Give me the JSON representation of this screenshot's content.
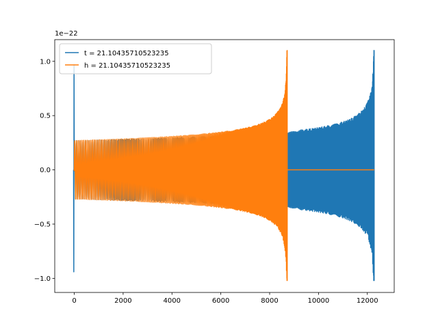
{
  "chart_data": {
    "type": "line",
    "title": "",
    "xlabel": "",
    "ylabel": "",
    "offset_text": "1e−22",
    "xlim": [
      -800,
      13100
    ],
    "ylim": [
      -1.13,
      1.2
    ],
    "x_ticks": [
      0,
      2000,
      4000,
      6000,
      8000,
      10000,
      12000
    ],
    "y_ticks": [
      -1.0,
      -0.5,
      0.0,
      0.5,
      1.0
    ],
    "y_tick_labels": [
      "−1.0",
      "−0.5",
      "0.0",
      "0.5",
      "1.0"
    ],
    "grid": false,
    "legend_position": "upper-left",
    "series": [
      {
        "name": "t = 21.10435710523235",
        "color": "#1f77b4",
        "start_x": 0,
        "initial_spike": 0.97,
        "initial_spike_min": -0.94,
        "early_amplitude": 0.27,
        "merger_x": 12280,
        "merger_peak": 1.1,
        "merger_trough": -1.02,
        "end_x": 12280
      },
      {
        "name": "h = 21.10435710523235",
        "color": "#ff7f0e",
        "start_x": 0,
        "early_amplitude": 0.27,
        "merger_x": 8720,
        "merger_peak": 1.1,
        "merger_trough": -1.02,
        "post_merger_value": 0.0,
        "end_x": 12280
      }
    ]
  }
}
